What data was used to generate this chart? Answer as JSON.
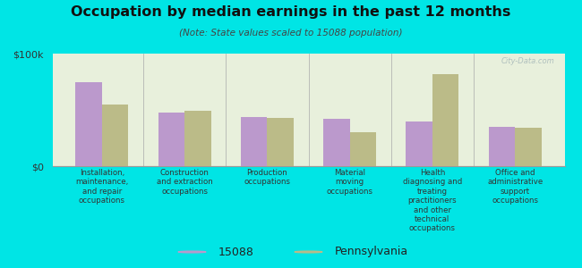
{
  "title": "Occupation by median earnings in the past 12 months",
  "subtitle": "(Note: State values scaled to 15088 population)",
  "background_color": "#00e5e5",
  "categories": [
    "Installation,\nmaintenance,\nand repair\noccupations",
    "Construction\nand extraction\noccupations",
    "Production\noccupations",
    "Material\nmoving\noccupations",
    "Health\ndiagnosing and\ntreating\npractitioners\nand other\ntechnical\noccupations",
    "Office and\nadministrative\nsupport\noccupations"
  ],
  "values_15088": [
    75000,
    48000,
    44000,
    42000,
    40000,
    35000
  ],
  "values_pa": [
    55000,
    49000,
    43000,
    30000,
    82000,
    34000
  ],
  "color_15088": "#bb99cc",
  "color_pa": "#bbbb88",
  "ylim": [
    0,
    100000
  ],
  "yticks": [
    0,
    100000
  ],
  "ytick_labels": [
    "$0",
    "$100k"
  ],
  "legend_labels": [
    "15088",
    "Pennsylvania"
  ],
  "watermark": "City-Data.com",
  "bar_width": 0.32,
  "plot_bg_color": "#e8f0dc"
}
